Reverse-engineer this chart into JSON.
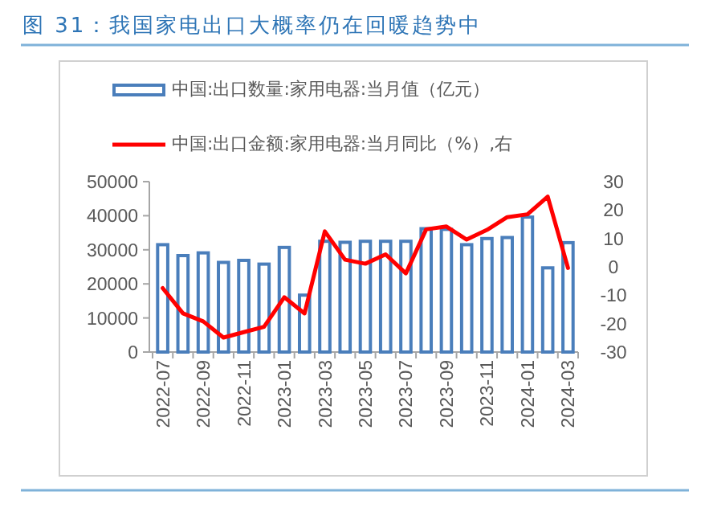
{
  "chart_data": {
    "type": "bar",
    "title": "图 31：我国家电出口大概率仍在回暖趋势中",
    "categories": [
      "2022-07",
      null,
      "2022-09",
      null,
      "2022-11",
      null,
      "2023-01",
      null,
      "2023-03",
      null,
      "2023-05",
      null,
      "2023-07",
      null,
      "2023-09",
      null,
      "2023-11",
      null,
      "2024-01",
      null,
      "2024-03"
    ],
    "series": [
      {
        "name": "中国:出口数量:家用电器:当月值（亿元）",
        "type": "bar",
        "color": "#4a7ebb",
        "values": [
          31500,
          28300,
          29100,
          26300,
          26900,
          25800,
          30700,
          16700,
          32500,
          32200,
          32500,
          32500,
          32500,
          36200,
          36000,
          31500,
          33300,
          33600,
          39600,
          24700,
          32100
        ]
      },
      {
        "name": "中国:出口金额:家用电器:当月同比（%）,右",
        "type": "line",
        "axis": "y2",
        "color": "#ff0000",
        "values": [
          -7.5,
          -16.4,
          -19.2,
          -24.9,
          -23,
          -21.1,
          -10.7,
          -16.4,
          12.5,
          2.5,
          1.1,
          4.4,
          -2.3,
          13.2,
          14.2,
          9.6,
          13,
          17.5,
          18.5,
          24.7,
          -0.4
        ]
      }
    ],
    "ylim": [
      0,
      50000
    ],
    "yticks": [
      0,
      10000,
      20000,
      30000,
      40000,
      50000
    ],
    "y2lim": [
      -30,
      30
    ],
    "y2ticks": [
      -30,
      -20,
      -10,
      0,
      10,
      20,
      30
    ],
    "legend": "top"
  }
}
